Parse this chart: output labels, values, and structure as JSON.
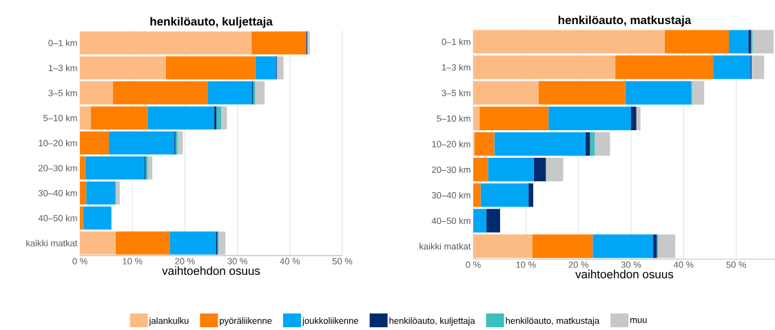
{
  "chart_data": [
    {
      "type": "bar",
      "orientation": "horizontal",
      "stacked": true,
      "title": "henkilöauto, kuljettaja",
      "xlabel": "vaihtoehdon osuus",
      "categories": [
        "0–1 km",
        "1–3 km",
        "3–5 km",
        "5–10 km",
        "10–20 km",
        "20–30 km",
        "30–40 km",
        "40–50 km",
        "kaikki matkat"
      ],
      "xlim": [
        0,
        50
      ],
      "xticks": [
        {
          "value": 0,
          "label": "0 %"
        },
        {
          "value": 10,
          "label": "10 %"
        },
        {
          "value": 20,
          "label": "20 %"
        },
        {
          "value": 30,
          "label": "30 %"
        },
        {
          "value": 40,
          "label": "40 %"
        },
        {
          "value": 50,
          "label": "50 %"
        }
      ],
      "grid": "x",
      "legend": "bottom",
      "series": [
        {
          "name": "jalankulku",
          "color": "#fdbb84",
          "values": [
            32.7,
            16.4,
            6.3,
            2.1,
            0,
            0,
            0,
            0,
            6.8
          ]
        },
        {
          "name": "pyöräliikenne",
          "color": "#ff7f00",
          "values": [
            10.4,
            17.0,
            18.1,
            10.8,
            5.5,
            1.0,
            1.2,
            0.6,
            10.3
          ]
        },
        {
          "name": "joukkoliikenne",
          "color": "#00a6f5",
          "values": [
            0,
            4.0,
            8.4,
            12.7,
            12.5,
            11.3,
            5.6,
            5.4,
            8.8
          ]
        },
        {
          "name": "henkilöauto, kuljettaja",
          "color": "#002b6e",
          "values": [
            0.2,
            0.1,
            0.2,
            0.4,
            0.2,
            0.2,
            0,
            0,
            0.3
          ]
        },
        {
          "name": "henkilöauto, matkustaja",
          "color": "#3dbfbf",
          "values": [
            0,
            0,
            0.4,
            0.9,
            0.4,
            0.4,
            0,
            0,
            0.2
          ]
        },
        {
          "name": "muu",
          "color": "#c8c8c8",
          "values": [
            0.5,
            1.3,
            1.8,
            1.1,
            1.0,
            0.9,
            0.8,
            0,
            1.3
          ]
        }
      ]
    },
    {
      "type": "bar",
      "orientation": "horizontal",
      "stacked": true,
      "title": "henkilöauto, matkustaja",
      "xlabel": "vaihtoehdon osuus",
      "categories": [
        "0–1 km",
        "1–3 km",
        "3–5 km",
        "5–10 km",
        "10–20 km",
        "20–30 km",
        "30–40 km",
        "40–50 km",
        "kaikki matkat"
      ],
      "xlim": [
        0,
        57.5
      ],
      "xticks": [
        {
          "value": 0,
          "label": "0 %"
        },
        {
          "value": 10,
          "label": "10 %"
        },
        {
          "value": 20,
          "label": "20 %"
        },
        {
          "value": 30,
          "label": "30 %"
        },
        {
          "value": 40,
          "label": "40 %"
        },
        {
          "value": 50,
          "label": "50 %"
        }
      ],
      "grid": "x",
      "series": [
        {
          "color": "#fdbb84",
          "values": [
            36.4,
            27.0,
            12.4,
            1.2,
            0.2,
            0,
            0,
            0,
            11.2
          ]
        },
        {
          "color": "#ff7f00",
          "values": [
            12.2,
            18.6,
            16.5,
            13.1,
            3.8,
            2.8,
            1.4,
            0,
            11.5
          ]
        },
        {
          "color": "#00a6f5",
          "values": [
            3.7,
            7.1,
            12.5,
            15.7,
            17.3,
            8.7,
            9.1,
            2.5,
            11.5
          ]
        },
        {
          "color": "#002b6e",
          "values": [
            0.5,
            0.2,
            0,
            1.0,
            0.9,
            2.3,
            0.9,
            2.6,
            0.7
          ]
        },
        {
          "color": "#3dbfbf",
          "values": [
            0.3,
            0,
            0.2,
            0,
            0.9,
            0,
            0,
            0,
            0.2
          ]
        },
        {
          "color": "#c8c8c8",
          "values": [
            4.0,
            2.4,
            2.3,
            0.8,
            2.9,
            3.3,
            0,
            0,
            3.3
          ]
        }
      ]
    }
  ]
}
